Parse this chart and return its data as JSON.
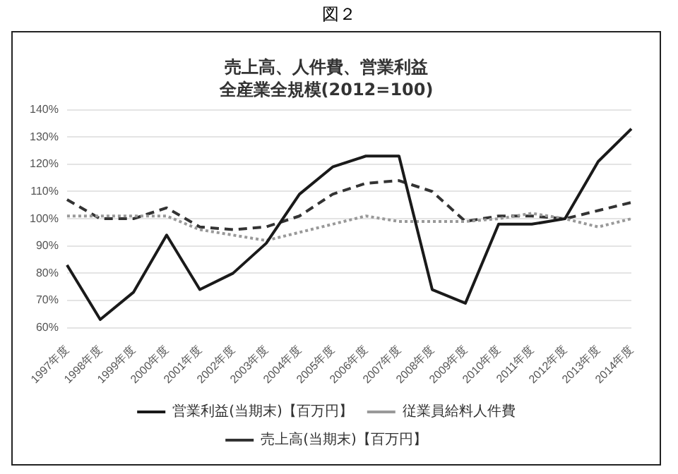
{
  "chart_data": {
    "type": "line",
    "title": "売上高、人件費、営業利益",
    "subtitle": "全産業全規模(2012=100)",
    "annotations": [
      "図２"
    ],
    "categories": [
      "1997年度",
      "1998年度",
      "1999年度",
      "2000年度",
      "2001年度",
      "2002年度",
      "2003年度",
      "2004年度",
      "2005年度",
      "2006年度",
      "2007年度",
      "2008年度",
      "2009年度",
      "2010年度",
      "2011年度",
      "2012年度",
      "2013年度",
      "2014年度"
    ],
    "ylim": [
      60,
      140
    ],
    "yticks": [
      {
        "value": 60,
        "label": "60%"
      },
      {
        "value": 70,
        "label": "70%"
      },
      {
        "value": 80,
        "label": "80%"
      },
      {
        "value": 90,
        "label": "90%"
      },
      {
        "value": 100,
        "label": "100%"
      },
      {
        "value": 110,
        "label": "110%"
      },
      {
        "value": 120,
        "label": "120%"
      },
      {
        "value": 130,
        "label": "130%"
      },
      {
        "value": 140,
        "label": "140%"
      }
    ],
    "grid": "y",
    "legend": "bottom",
    "marker": "none",
    "series": [
      {
        "name": "営業利益(当期末)【百万円】",
        "color": "#1a1a1a",
        "line_style": "solid",
        "values": [
          83,
          63,
          73,
          94,
          74,
          80,
          91,
          109,
          119,
          123,
          123,
          74,
          69,
          98,
          98,
          100,
          121,
          133
        ]
      },
      {
        "name": "従業員給料人件費",
        "color": "#999999",
        "line_style": "dotted",
        "values": [
          101,
          101,
          101,
          101,
          96,
          94,
          92,
          95,
          98,
          101,
          99,
          99,
          99,
          100,
          102,
          100,
          97,
          100
        ]
      },
      {
        "name": "売上高(当期末)【百万円】",
        "color": "#333333",
        "line_style": "dashed",
        "values": [
          107,
          100,
          100,
          104,
          97,
          96,
          97,
          101,
          109,
          113,
          114,
          110,
          99,
          101,
          101,
          100,
          103,
          106
        ]
      }
    ]
  }
}
